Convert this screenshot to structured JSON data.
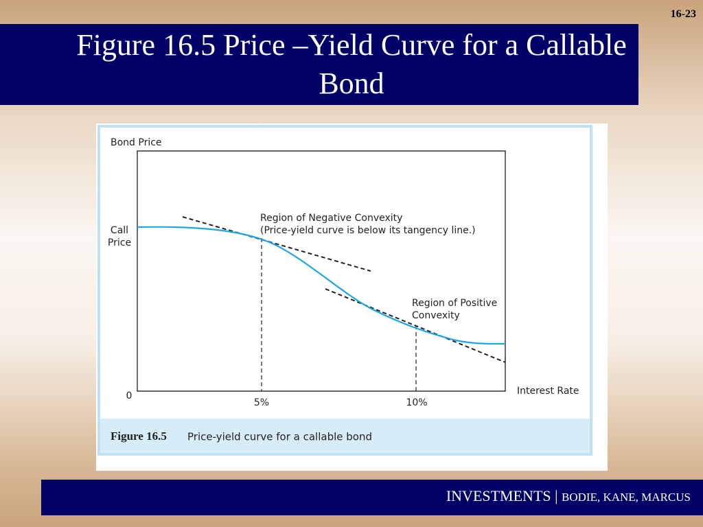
{
  "slide_number": "16-23",
  "title": {
    "lines": [
      "Figure 16.5 Price –Yield Curve for a Callable",
      "Bond"
    ]
  },
  "figure": {
    "y_axis_label": "Bond Price",
    "call_price_label": [
      "Call",
      "Price"
    ],
    "origin_label": "0",
    "x_axis_label": "Interest Rate",
    "x_ticks": [
      "5%",
      "10%"
    ],
    "negative_convexity": [
      "Region of Negative Convexity",
      "(Price-yield curve is below its tangency line.)"
    ],
    "positive_convexity": [
      "Region of Positive",
      "Convexity"
    ],
    "caption": {
      "number": "Figure 16.5",
      "text": "Price-yield curve for a callable bond"
    }
  },
  "footer": {
    "title": "INVESTMENTS",
    "separator": "|",
    "authors": "BODIE, KANE, MARCUS"
  }
}
